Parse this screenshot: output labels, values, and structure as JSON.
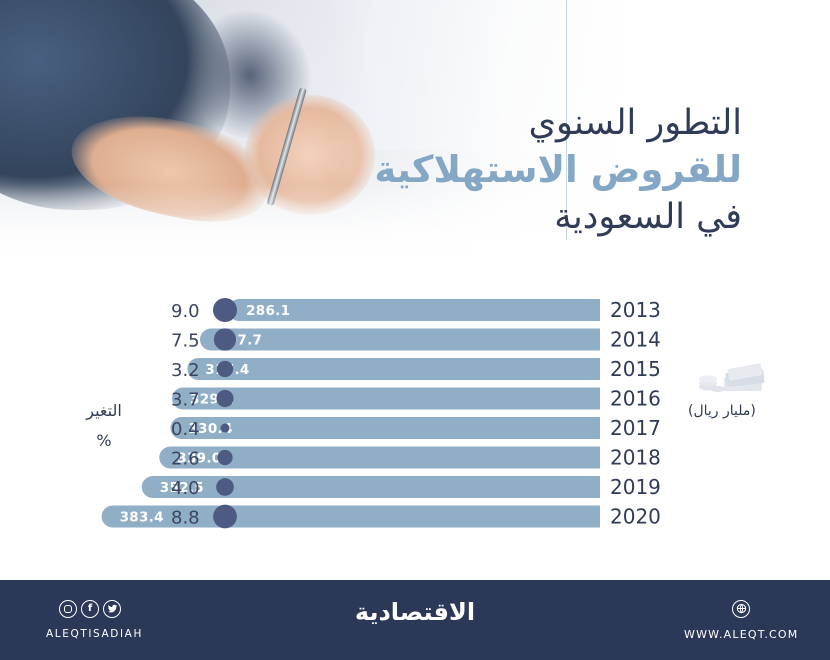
{
  "title": {
    "line1": "التطور السنوي",
    "line2": "للقروض الاستهلاكية",
    "line3": "في السعودية"
  },
  "labels": {
    "unit": "(مليار ريال)",
    "change": "التغير",
    "percent": "%"
  },
  "icons": {
    "money": "money-stack-icon",
    "instagram": "instagram-icon",
    "facebook": "facebook-icon",
    "twitter": "twitter-icon",
    "web": "globe-icon"
  },
  "colors": {
    "bar": "#91aec7",
    "bubble": "#4d5b82",
    "title_dark": "#2f3b57",
    "title_accent": "#84a7c5",
    "footer": "#2c3857"
  },
  "chart_data": {
    "type": "bar",
    "orientation": "horizontal",
    "categories": [
      "2013",
      "2014",
      "2015",
      "2016",
      "2017",
      "2018",
      "2019",
      "2020"
    ],
    "series": [
      {
        "name": "(مليار ريال)",
        "values": [
          286.1,
          307.7,
          317.4,
          329.2,
          330.4,
          339.0,
          352.5,
          383.4
        ]
      },
      {
        "name": "التغير %",
        "values": [
          9.0,
          7.5,
          3.2,
          3.7,
          0.4,
          2.6,
          4.0,
          8.8
        ]
      }
    ],
    "value_labels": [
      "286.1",
      "307.7",
      "317.4",
      "329.2",
      "330.4",
      "339.0",
      "352.5",
      "383.4"
    ],
    "change_labels": [
      "9.0",
      "7.5",
      "3.2",
      "3.7",
      "0.4",
      "2.6",
      "4.0",
      "8.8"
    ],
    "title": "التطور السنوي للقروض الاستهلاكية في السعودية",
    "xlabel": "",
    "ylabel": "",
    "grid": false,
    "legend": "none"
  },
  "footer": {
    "brand": "الاقتصادية",
    "handle": "ALEQTISADIAH",
    "site": "WWW.ALEQT.COM",
    "fb_glyph": "f"
  }
}
